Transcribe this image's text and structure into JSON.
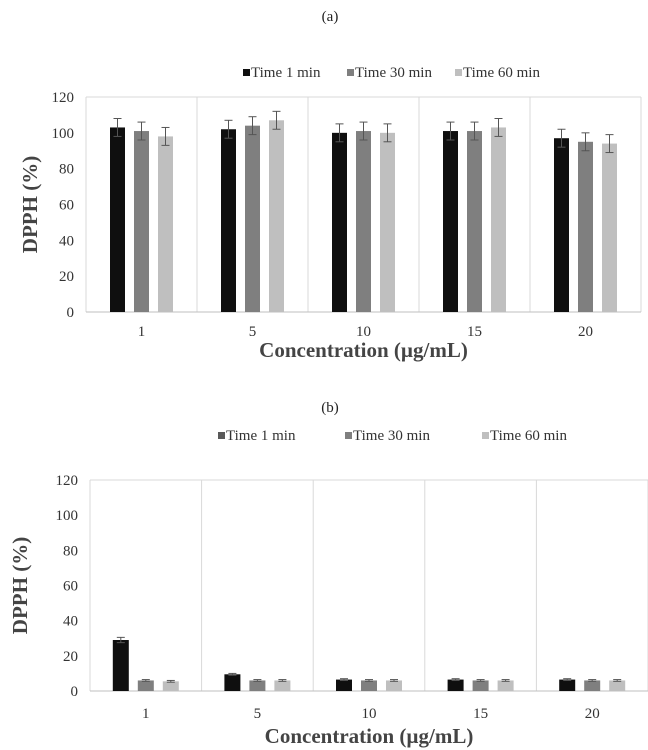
{
  "chart_data": [
    {
      "type": "bar",
      "panel_label": "(a)",
      "xlabel": "Concentration (µg/mL)",
      "ylabel": "DPPH (%)",
      "categories": [
        "1",
        "5",
        "10",
        "15",
        "20"
      ],
      "ylim": [
        0,
        120
      ],
      "yticks": [
        0,
        20,
        40,
        60,
        80,
        100,
        120
      ],
      "grid": "vertical",
      "legend_position": "top",
      "series": [
        {
          "name": "Time 1 min",
          "color": "#0f0f0f",
          "values": [
            103,
            102,
            100,
            101,
            97
          ],
          "errors": [
            5,
            5,
            5,
            5,
            5
          ]
        },
        {
          "name": "Time 30 min",
          "color": "#7f7f7f",
          "values": [
            101,
            104,
            101,
            101,
            95
          ],
          "errors": [
            5,
            5,
            5,
            5,
            5
          ]
        },
        {
          "name": "Time 60 min",
          "color": "#bfbfbf",
          "values": [
            98,
            107,
            100,
            103,
            94
          ],
          "errors": [
            5,
            5,
            5,
            5,
            5
          ]
        }
      ]
    },
    {
      "type": "bar",
      "panel_label": "(b)",
      "xlabel": "Concentration (µg/mL)",
      "ylabel": "DPPH (%)",
      "categories": [
        "1",
        "5",
        "10",
        "15",
        "20"
      ],
      "ylim": [
        0,
        120
      ],
      "yticks": [
        0,
        20,
        40,
        60,
        80,
        100,
        120
      ],
      "grid": "vertical",
      "legend_position": "top",
      "series": [
        {
          "name": "Time 1 min",
          "color": "#0f0f0f",
          "legend_color": "#595959",
          "values": [
            29,
            9.5,
            6.5,
            6.5,
            6.5
          ],
          "errors": [
            1.5,
            0.5,
            0.5,
            0.5,
            0.5
          ]
        },
        {
          "name": "Time 30 min",
          "color": "#7f7f7f",
          "values": [
            6,
            6,
            6,
            6,
            6
          ],
          "errors": [
            0.5,
            0.5,
            0.5,
            0.5,
            0.5
          ]
        },
        {
          "name": "Time 60 min",
          "color": "#bfbfbf",
          "values": [
            5.5,
            6,
            6,
            6,
            6
          ],
          "errors": [
            0.5,
            0.5,
            0.5,
            0.5,
            0.5
          ]
        }
      ]
    }
  ]
}
